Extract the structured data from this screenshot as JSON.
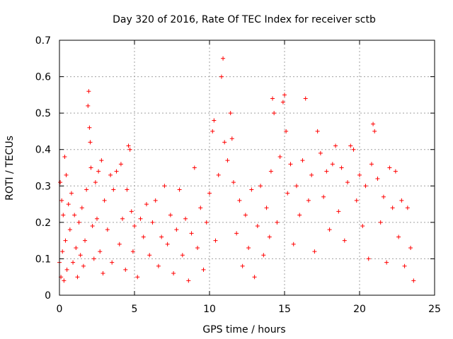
{
  "chart_data": {
    "type": "scatter",
    "title": "Day 320 of 2016, Rate Of TEC Index for receiver sctb",
    "xlabel": "GPS time / hours",
    "ylabel": "ROTI / TECUs",
    "xlim": [
      0,
      25
    ],
    "ylim": [
      0,
      0.7
    ],
    "xticks": [
      "0",
      "5",
      "10",
      "15",
      "20",
      "25"
    ],
    "yticks": [
      "0",
      "0.1",
      "0.2",
      "0.3",
      "0.4",
      "0.5",
      "0.6",
      "0.7"
    ],
    "grid": true,
    "marker": "plus",
    "color": "#ff0000",
    "series": [
      {
        "points": [
          [
            0.0,
            0.09
          ],
          [
            0.05,
            0.31
          ],
          [
            0.1,
            0.05
          ],
          [
            0.15,
            0.26
          ],
          [
            0.2,
            0.12
          ],
          [
            0.25,
            0.22
          ],
          [
            0.3,
            0.04
          ],
          [
            0.35,
            0.38
          ],
          [
            0.4,
            0.15
          ],
          [
            0.45,
            0.33
          ],
          [
            0.5,
            0.07
          ],
          [
            0.6,
            0.25
          ],
          [
            0.7,
            0.18
          ],
          [
            0.8,
            0.28
          ],
          [
            0.9,
            0.09
          ],
          [
            1.0,
            0.22
          ],
          [
            1.1,
            0.13
          ],
          [
            1.2,
            0.05
          ],
          [
            1.3,
            0.2
          ],
          [
            1.4,
            0.11
          ],
          [
            1.5,
            0.24
          ],
          [
            1.6,
            0.08
          ],
          [
            1.7,
            0.15
          ],
          [
            1.8,
            0.29
          ],
          [
            1.9,
            0.52
          ],
          [
            1.95,
            0.56
          ],
          [
            2.0,
            0.46
          ],
          [
            2.05,
            0.42
          ],
          [
            2.1,
            0.35
          ],
          [
            2.2,
            0.19
          ],
          [
            2.3,
            0.1
          ],
          [
            2.4,
            0.31
          ],
          [
            2.5,
            0.21
          ],
          [
            2.6,
            0.34
          ],
          [
            2.7,
            0.12
          ],
          [
            2.8,
            0.37
          ],
          [
            2.9,
            0.06
          ],
          [
            3.0,
            0.26
          ],
          [
            3.2,
            0.18
          ],
          [
            3.4,
            0.33
          ],
          [
            3.5,
            0.09
          ],
          [
            3.6,
            0.29
          ],
          [
            3.8,
            0.34
          ],
          [
            4.0,
            0.14
          ],
          [
            4.1,
            0.36
          ],
          [
            4.2,
            0.21
          ],
          [
            4.4,
            0.07
          ],
          [
            4.5,
            0.29
          ],
          [
            4.6,
            0.41
          ],
          [
            4.7,
            0.4
          ],
          [
            4.8,
            0.23
          ],
          [
            4.9,
            0.12
          ],
          [
            5.0,
            0.19
          ],
          [
            5.2,
            0.05
          ],
          [
            5.4,
            0.21
          ],
          [
            5.6,
            0.16
          ],
          [
            5.8,
            0.25
          ],
          [
            6.0,
            0.11
          ],
          [
            6.2,
            0.2
          ],
          [
            6.4,
            0.26
          ],
          [
            6.6,
            0.08
          ],
          [
            6.8,
            0.16
          ],
          [
            7.0,
            0.3
          ],
          [
            7.2,
            0.14
          ],
          [
            7.4,
            0.22
          ],
          [
            7.6,
            0.06
          ],
          [
            7.8,
            0.18
          ],
          [
            8.0,
            0.29
          ],
          [
            8.2,
            0.11
          ],
          [
            8.4,
            0.21
          ],
          [
            8.6,
            0.04
          ],
          [
            8.8,
            0.17
          ],
          [
            9.0,
            0.35
          ],
          [
            9.2,
            0.13
          ],
          [
            9.4,
            0.24
          ],
          [
            9.6,
            0.07
          ],
          [
            9.8,
            0.2
          ],
          [
            10.0,
            0.28
          ],
          [
            10.2,
            0.45
          ],
          [
            10.3,
            0.48
          ],
          [
            10.4,
            0.15
          ],
          [
            10.6,
            0.33
          ],
          [
            10.8,
            0.6
          ],
          [
            10.9,
            0.65
          ],
          [
            11.0,
            0.42
          ],
          [
            11.2,
            0.37
          ],
          [
            11.4,
            0.5
          ],
          [
            11.5,
            0.43
          ],
          [
            11.6,
            0.31
          ],
          [
            11.8,
            0.17
          ],
          [
            12.0,
            0.26
          ],
          [
            12.2,
            0.08
          ],
          [
            12.4,
            0.22
          ],
          [
            12.6,
            0.13
          ],
          [
            12.8,
            0.29
          ],
          [
            13.0,
            0.05
          ],
          [
            13.2,
            0.19
          ],
          [
            13.4,
            0.3
          ],
          [
            13.6,
            0.11
          ],
          [
            13.8,
            0.24
          ],
          [
            14.0,
            0.16
          ],
          [
            14.1,
            0.34
          ],
          [
            14.2,
            0.54
          ],
          [
            14.3,
            0.5
          ],
          [
            14.5,
            0.2
          ],
          [
            14.7,
            0.38
          ],
          [
            14.9,
            0.53
          ],
          [
            15.0,
            0.55
          ],
          [
            15.1,
            0.45
          ],
          [
            15.2,
            0.28
          ],
          [
            15.4,
            0.36
          ],
          [
            15.6,
            0.14
          ],
          [
            15.8,
            0.3
          ],
          [
            16.0,
            0.22
          ],
          [
            16.2,
            0.37
          ],
          [
            16.4,
            0.54
          ],
          [
            16.6,
            0.26
          ],
          [
            16.8,
            0.33
          ],
          [
            17.0,
            0.12
          ],
          [
            17.2,
            0.45
          ],
          [
            17.4,
            0.39
          ],
          [
            17.6,
            0.27
          ],
          [
            17.8,
            0.34
          ],
          [
            18.0,
            0.18
          ],
          [
            18.2,
            0.36
          ],
          [
            18.4,
            0.41
          ],
          [
            18.6,
            0.23
          ],
          [
            18.8,
            0.35
          ],
          [
            19.0,
            0.15
          ],
          [
            19.2,
            0.31
          ],
          [
            19.4,
            0.41
          ],
          [
            19.6,
            0.4
          ],
          [
            19.8,
            0.26
          ],
          [
            20.0,
            0.33
          ],
          [
            20.2,
            0.19
          ],
          [
            20.4,
            0.3
          ],
          [
            20.6,
            0.1
          ],
          [
            20.8,
            0.36
          ],
          [
            20.9,
            0.47
          ],
          [
            21.0,
            0.45
          ],
          [
            21.2,
            0.32
          ],
          [
            21.4,
            0.2
          ],
          [
            21.6,
            0.27
          ],
          [
            21.8,
            0.09
          ],
          [
            22.0,
            0.35
          ],
          [
            22.2,
            0.24
          ],
          [
            22.4,
            0.34
          ],
          [
            22.6,
            0.16
          ],
          [
            22.8,
            0.26
          ],
          [
            23.0,
            0.08
          ],
          [
            23.2,
            0.24
          ],
          [
            23.4,
            0.13
          ],
          [
            23.6,
            0.04
          ]
        ]
      }
    ]
  }
}
